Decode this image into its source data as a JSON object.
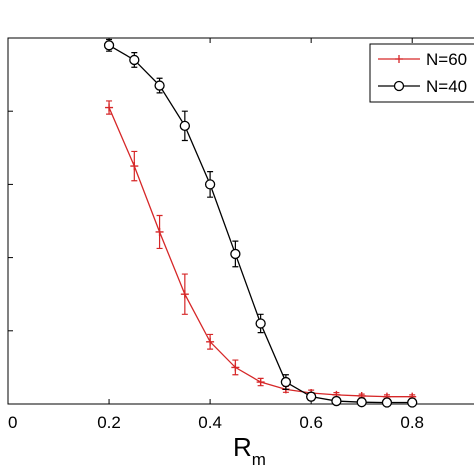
{
  "chart_data": {
    "type": "line",
    "title": "",
    "xlabel": "R",
    "xlabel_subscript": "m",
    "ylabel": "",
    "xlim": [
      0.0,
      0.95
    ],
    "ylim": [
      0.0,
      1.0
    ],
    "xticks": [
      0.0,
      0.2,
      0.4,
      0.6,
      0.8
    ],
    "xtick_labels": [
      "0",
      "0.2",
      "0.4",
      "0.6",
      "0.8"
    ],
    "grid": false,
    "legend_position": "top-right",
    "x": [
      0.2,
      0.25,
      0.3,
      0.35,
      0.4,
      0.45,
      0.5,
      0.55,
      0.6,
      0.65,
      0.7,
      0.75,
      0.8
    ],
    "series": [
      {
        "name": "N=60",
        "color": "#d62728",
        "marker": "plus",
        "values": [
          0.81,
          0.65,
          0.47,
          0.3,
          0.17,
          0.1,
          0.06,
          0.04,
          0.03,
          0.025,
          0.022,
          0.02,
          0.02
        ],
        "errors": [
          0.018,
          0.04,
          0.045,
          0.055,
          0.02,
          0.02,
          0.01,
          0.008,
          0.008,
          0.006,
          0.005,
          0.005,
          0.005
        ]
      },
      {
        "name": "N=40",
        "color": "#000000",
        "marker": "circle",
        "values": [
          0.98,
          0.94,
          0.87,
          0.76,
          0.6,
          0.41,
          0.22,
          0.06,
          0.02,
          0.008,
          0.005,
          0.004,
          0.004
        ],
        "errors": [
          0.016,
          0.02,
          0.02,
          0.04,
          0.035,
          0.035,
          0.025,
          0.02,
          0.01,
          0.005,
          0.004,
          0.004,
          0.003
        ]
      }
    ]
  }
}
